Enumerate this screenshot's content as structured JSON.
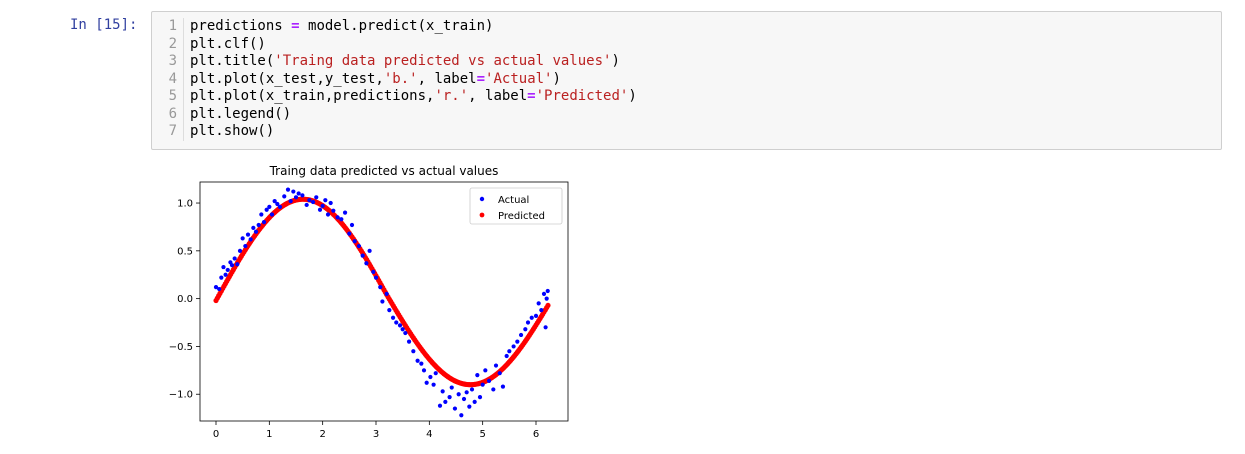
{
  "prompt": "In [15]:",
  "code_lines": [
    {
      "num": "1",
      "parts": [
        [
          "t",
          "predictions "
        ],
        [
          "o",
          "="
        ],
        [
          "t",
          " model.predict(x_train)"
        ]
      ]
    },
    {
      "num": "2",
      "parts": [
        [
          "t",
          "plt.clf()"
        ]
      ]
    },
    {
      "num": "3",
      "parts": [
        [
          "t",
          "plt.title("
        ],
        [
          "s",
          "'Traing data predicted vs actual values'"
        ],
        [
          "t",
          ")"
        ]
      ]
    },
    {
      "num": "4",
      "parts": [
        [
          "t",
          "plt.plot(x_test,y_test,"
        ],
        [
          "s",
          "'b.'"
        ],
        [
          "t",
          ", label"
        ],
        [
          "o",
          "="
        ],
        [
          "s",
          "'Actual'"
        ],
        [
          "t",
          ")"
        ]
      ]
    },
    {
      "num": "5",
      "parts": [
        [
          "t",
          "plt.plot(x_train,predictions,"
        ],
        [
          "s",
          "'r.'"
        ],
        [
          "t",
          ", label"
        ],
        [
          "o",
          "="
        ],
        [
          "s",
          "'Predicted'"
        ],
        [
          "t",
          ")"
        ]
      ]
    },
    {
      "num": "6",
      "parts": [
        [
          "t",
          "plt.legend()"
        ]
      ]
    },
    {
      "num": "7",
      "parts": [
        [
          "t",
          "plt.show()"
        ]
      ]
    }
  ],
  "chart_data": {
    "type": "scatter",
    "title": "Traing data predicted vs actual values",
    "xlabel": "",
    "ylabel": "",
    "xlim": [
      -0.3,
      6.6
    ],
    "ylim": [
      -1.28,
      1.22
    ],
    "xticks": [
      "0",
      "1",
      "2",
      "3",
      "4",
      "5",
      "6"
    ],
    "yticks": [
      "1.0",
      "0.5",
      "0.0",
      "−0.5",
      "−1.0"
    ],
    "ytick_values": [
      1.0,
      0.5,
      0.0,
      -0.5,
      -1.0
    ],
    "xtick_values": [
      0,
      1,
      2,
      3,
      4,
      5,
      6
    ],
    "legend_position": "top-right",
    "grid": false,
    "series": [
      {
        "name": "Actual",
        "color": "#0000ff",
        "points": [
          [
            0.0,
            0.12
          ],
          [
            0.06,
            0.1
          ],
          [
            0.1,
            0.22
          ],
          [
            0.14,
            0.33
          ],
          [
            0.18,
            0.25
          ],
          [
            0.22,
            0.3
          ],
          [
            0.27,
            0.38
          ],
          [
            0.3,
            0.35
          ],
          [
            0.35,
            0.42
          ],
          [
            0.4,
            0.36
          ],
          [
            0.45,
            0.5
          ],
          [
            0.5,
            0.63
          ],
          [
            0.55,
            0.55
          ],
          [
            0.6,
            0.67
          ],
          [
            0.65,
            0.62
          ],
          [
            0.7,
            0.74
          ],
          [
            0.75,
            0.7
          ],
          [
            0.8,
            0.77
          ],
          [
            0.85,
            0.88
          ],
          [
            0.9,
            0.8
          ],
          [
            0.95,
            0.93
          ],
          [
            1.0,
            0.96
          ],
          [
            1.05,
            0.88
          ],
          [
            1.1,
            1.02
          ],
          [
            1.15,
            0.99
          ],
          [
            1.2,
            0.96
          ],
          [
            1.28,
            1.07
          ],
          [
            1.35,
            1.14
          ],
          [
            1.4,
            1.02
          ],
          [
            1.45,
            1.12
          ],
          [
            1.5,
            1.06
          ],
          [
            1.55,
            1.1
          ],
          [
            1.62,
            1.08
          ],
          [
            1.7,
            0.98
          ],
          [
            1.75,
            1.03
          ],
          [
            1.82,
            1.01
          ],
          [
            1.88,
            1.06
          ],
          [
            1.95,
            0.93
          ],
          [
            2.0,
            0.97
          ],
          [
            2.05,
            1.03
          ],
          [
            2.1,
            0.88
          ],
          [
            2.15,
            1.0
          ],
          [
            2.2,
            0.92
          ],
          [
            2.28,
            0.85
          ],
          [
            2.35,
            0.83
          ],
          [
            2.42,
            0.9
          ],
          [
            2.5,
            0.68
          ],
          [
            2.55,
            0.77
          ],
          [
            2.6,
            0.6
          ],
          [
            2.68,
            0.55
          ],
          [
            2.75,
            0.45
          ],
          [
            2.82,
            0.37
          ],
          [
            2.88,
            0.5
          ],
          [
            2.95,
            0.28
          ],
          [
            3.0,
            0.22
          ],
          [
            3.08,
            0.12
          ],
          [
            3.12,
            -0.03
          ],
          [
            3.2,
            0.05
          ],
          [
            3.25,
            -0.12
          ],
          [
            3.32,
            -0.2
          ],
          [
            3.38,
            -0.25
          ],
          [
            3.45,
            -0.28
          ],
          [
            3.5,
            -0.32
          ],
          [
            3.55,
            -0.36
          ],
          [
            3.62,
            -0.45
          ],
          [
            3.7,
            -0.55
          ],
          [
            3.78,
            -0.65
          ],
          [
            3.85,
            -0.68
          ],
          [
            3.9,
            -0.75
          ],
          [
            3.95,
            -0.88
          ],
          [
            4.02,
            -0.82
          ],
          [
            4.08,
            -0.9
          ],
          [
            4.12,
            -0.78
          ],
          [
            4.2,
            -1.12
          ],
          [
            4.25,
            -0.97
          ],
          [
            4.3,
            -1.08
          ],
          [
            4.38,
            -1.03
          ],
          [
            4.42,
            -0.93
          ],
          [
            4.48,
            -1.15
          ],
          [
            4.55,
            -1.0
          ],
          [
            4.6,
            -1.22
          ],
          [
            4.65,
            -1.05
          ],
          [
            4.7,
            -0.98
          ],
          [
            4.75,
            -1.13
          ],
          [
            4.8,
            -0.95
          ],
          [
            4.85,
            -1.08
          ],
          [
            4.9,
            -0.8
          ],
          [
            4.95,
            -1.03
          ],
          [
            5.0,
            -0.9
          ],
          [
            5.05,
            -0.75
          ],
          [
            5.12,
            -0.86
          ],
          [
            5.2,
            -0.95
          ],
          [
            5.25,
            -0.7
          ],
          [
            5.32,
            -0.78
          ],
          [
            5.38,
            -0.92
          ],
          [
            5.45,
            -0.6
          ],
          [
            5.5,
            -0.55
          ],
          [
            5.58,
            -0.5
          ],
          [
            5.65,
            -0.45
          ],
          [
            5.72,
            -0.38
          ],
          [
            5.8,
            -0.32
          ],
          [
            5.85,
            -0.25
          ],
          [
            5.92,
            -0.2
          ],
          [
            6.0,
            -0.18
          ],
          [
            6.05,
            -0.05
          ],
          [
            6.1,
            -0.12
          ],
          [
            6.15,
            0.05
          ],
          [
            6.2,
            0.0
          ],
          [
            6.22,
            0.08
          ],
          [
            6.18,
            -0.3
          ]
        ]
      },
      {
        "name": "Predicted",
        "color": "#ff0000",
        "curve": true
      }
    ]
  }
}
